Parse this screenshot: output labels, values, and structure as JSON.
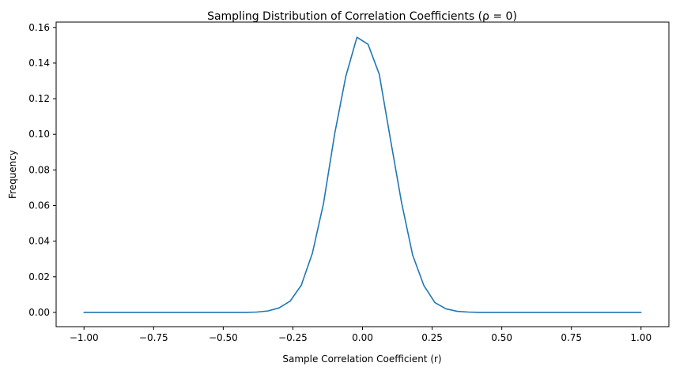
{
  "chart_data": {
    "type": "line",
    "title": "Sampling Distribution of Correlation Coefficients (ρ = 0)",
    "xlabel": "Sample Correlation Coefficient (r)",
    "ylabel": "Frequency",
    "xlim": [
      -1.1,
      1.1
    ],
    "ylim": [
      -0.008,
      0.163
    ],
    "xticks": [
      -1.0,
      -0.75,
      -0.5,
      -0.25,
      0.0,
      0.25,
      0.5,
      0.75,
      1.0
    ],
    "xtick_labels": [
      "−1.00",
      "−0.75",
      "−0.50",
      "−0.25",
      "0.00",
      "0.25",
      "0.50",
      "0.75",
      "1.00"
    ],
    "yticks": [
      0.0,
      0.02,
      0.04,
      0.06,
      0.08,
      0.1,
      0.12,
      0.14,
      0.16
    ],
    "ytick_labels": [
      "0.00",
      "0.02",
      "0.04",
      "0.06",
      "0.08",
      "0.10",
      "0.12",
      "0.14",
      "0.16"
    ],
    "grid": false,
    "line_color": "#1f77b4",
    "series": [
      {
        "x": [
          -1.0,
          -0.9,
          -0.8,
          -0.7,
          -0.6,
          -0.5,
          -0.42,
          -0.38,
          -0.34,
          -0.3,
          -0.26,
          -0.22,
          -0.18,
          -0.14,
          -0.1,
          -0.06,
          -0.02,
          0.02,
          0.06,
          0.1,
          0.14,
          0.18,
          0.22,
          0.26,
          0.3,
          0.34,
          0.38,
          0.42,
          0.5,
          0.6,
          0.7,
          0.8,
          0.9,
          1.0
        ],
        "values": [
          0.0,
          0.0,
          0.0,
          0.0,
          0.0,
          0.0,
          0.0,
          0.0002,
          0.0008,
          0.0025,
          0.0063,
          0.0152,
          0.0332,
          0.0612,
          0.1002,
          0.1325,
          0.1545,
          0.1505,
          0.1338,
          0.0975,
          0.0618,
          0.0322,
          0.0152,
          0.0055,
          0.002,
          0.0006,
          0.0002,
          0.0,
          0.0,
          0.0,
          0.0,
          0.0,
          0.0,
          0.0
        ]
      }
    ]
  }
}
